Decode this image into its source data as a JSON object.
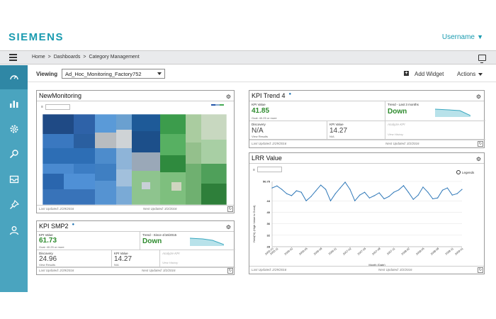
{
  "header": {
    "logo": "SIEMENS",
    "username": "Username"
  },
  "breadcrumb": [
    "Home",
    ">",
    "Dashboards",
    ">",
    "Category Management"
  ],
  "viewbar": {
    "viewing_label": "Viewing",
    "selected": "Ad_Hoc_Monitoring_Factory752",
    "add_widget": "Add Widget",
    "actions": "Actions"
  },
  "sidebar": {
    "items": [
      "dashboard-icon",
      "bar-chart-icon",
      "gear-icon",
      "search-icon",
      "inbox-icon",
      "pin-icon",
      "user-icon"
    ]
  },
  "widgets": {
    "new_monitoring": {
      "title": "NewMonitoring",
      "last_updated": "Last Updated: 2/29/2016",
      "next_updated": "Next Updated: 3/2/2016"
    },
    "kpi_trend4": {
      "title": "KPI Trend 4",
      "kpi_label": "KPI Value",
      "kpi_value": "41.85",
      "kpi_goal": "Goal: 40.25 or more",
      "trend_label": "Trend - Last 3 months",
      "trend_value": "Down",
      "discovery_label": "Discovery",
      "discovery_value": "N/A",
      "discovery_link": "View Results",
      "kpi2_label": "KPI Value",
      "kpi2_value": "14.27",
      "kpi2_sub": "N/A",
      "analyze": "Analyze KPI",
      "history": "View History",
      "last_updated": "Last Updated: 2/29/2016",
      "next_updated": "Next Updated: 3/2/2016"
    },
    "kpi_smp2": {
      "title": "KPI SMP2",
      "kpi_label": "KPI Value",
      "kpi_value": "61.73",
      "kpi_goal": "Goal: 40.25 or more",
      "trend_label": "Trend - Since 4/16/2015",
      "trend_value": "Down",
      "discovery_label": "Discovery",
      "discovery_value": "24.96",
      "discovery_link": "View Results",
      "kpi2_label": "KPI Value",
      "kpi2_value": "14.27",
      "kpi2_sub": "N/A",
      "analyze": "Analyze KPI",
      "history": "View History",
      "last_updated": "Last Updated: 2/29/2016",
      "next_updated": "Next Updated: 3/2/2016"
    },
    "lrr_value": {
      "title": "LRR Value",
      "legends": "Legends",
      "last_updated": "Last Updated: 2/29/2016",
      "next_updated": "Next Updated: 3/2/2016"
    }
  },
  "chart_data": {
    "type": "line",
    "ylabel": "Yield(%) (High Value is Good)",
    "xlabel": "Month (Date)",
    "ylim": [
      28,
      50.75
    ],
    "yticks": [
      "50.75",
      "44",
      "40",
      "36",
      "32",
      "28"
    ],
    "x": [
      "2005-10",
      "2005-11",
      "2005-12",
      "2006-01",
      "2006-02",
      "2006-03",
      "2006-04",
      "2006-05",
      "2006-06",
      "2006-07",
      "2006-08",
      "2006-09",
      "2006-10",
      "2006-11",
      "2006-12",
      "2007-01",
      "2007-02",
      "2007-03",
      "2007-04",
      "2007-05",
      "2007-06",
      "2007-07",
      "2007-08",
      "2007-09",
      "2007-10",
      "2007-11",
      "2007-12",
      "2008-01",
      "2008-02",
      "2008-03",
      "2008-04",
      "2008-05",
      "2008-06",
      "2008-07",
      "2008-08",
      "2008-09",
      "2008-10",
      "2008-11",
      "2008-12",
      "2009-01"
    ],
    "xticks": [
      "2005-10",
      "2005-11",
      "2006-02",
      "2006-05",
      "2006-08",
      "2006-11",
      "2007-02",
      "2007-05",
      "2007-08",
      "2007-11",
      "2008-02",
      "2008-05",
      "2008-08",
      "2008-11",
      "2009-01"
    ],
    "values": [
      48.5,
      49.2,
      48,
      46.5,
      45.8,
      47.5,
      47,
      44,
      45.5,
      47.5,
      49.5,
      48,
      44,
      46.5,
      48.5,
      50.5,
      48,
      44,
      46,
      47,
      45,
      45.8,
      46.8,
      44.7,
      45.5,
      47,
      47.8,
      49.3,
      47,
      44.5,
      46,
      48.8,
      47,
      44.7,
      45,
      47.7,
      48.5,
      46,
      46.5,
      48
    ]
  }
}
